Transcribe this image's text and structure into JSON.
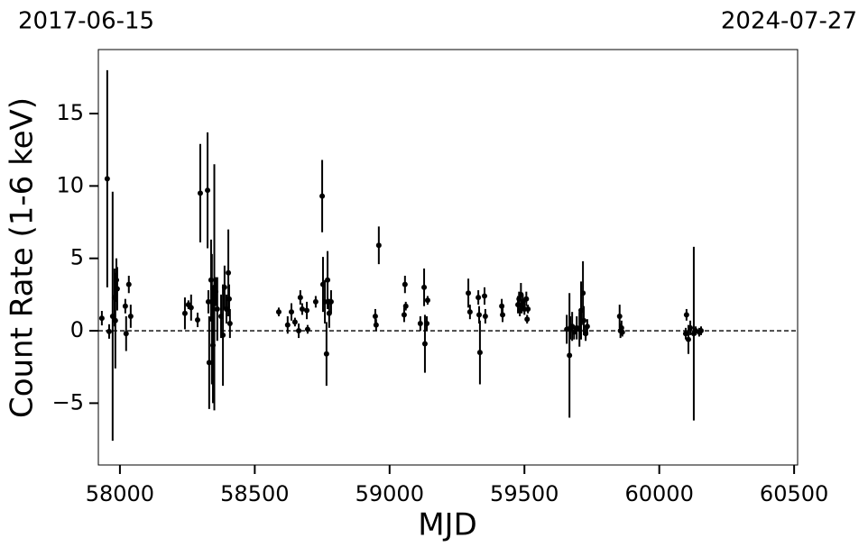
{
  "chart_data": {
    "type": "errorbar",
    "annotations": [
      "2017-06-15",
      "2024-07-27"
    ],
    "xlabel": "MJD",
    "ylabel": "Count Rate (1-6 keV)",
    "xlim": [
      57920,
      60513
    ],
    "ylim": [
      -9.27,
      19.42
    ],
    "xticks": [
      58000,
      58500,
      59000,
      59500,
      60000,
      60500
    ],
    "yticks": [
      {
        "value": -5,
        "label": "−5"
      },
      0,
      5,
      10,
      15
    ],
    "reference_line": 0,
    "color": "#000000",
    "x": [
      57933,
      57953,
      57960,
      57973,
      57980,
      57983,
      57987,
      57990,
      58020,
      58023,
      58033,
      58040,
      58241,
      58254,
      58264,
      58288,
      58298,
      58325,
      58328,
      58331,
      58338,
      58341,
      58345,
      58350,
      58355,
      58361,
      58375,
      58382,
      58388,
      58395,
      58402,
      58405,
      58408,
      58589,
      58622,
      58636,
      58649,
      58663,
      58669,
      58676,
      58693,
      58696,
      58726,
      58750,
      58753,
      58760,
      58766,
      58770,
      58776,
      58783,
      58947,
      58950,
      58960,
      59054,
      59057,
      59060,
      59114,
      59128,
      59131,
      59138,
      59141,
      59292,
      59298,
      59329,
      59332,
      59335,
      59352,
      59355,
      59416,
      59419,
      59476,
      59480,
      59483,
      59487,
      59490,
      59494,
      59500,
      59507,
      59510,
      59513,
      59657,
      59667,
      59670,
      59677,
      59684,
      59694,
      59704,
      59710,
      59717,
      59720,
      59727,
      59733,
      59853,
      59856,
      59860,
      59863,
      60098,
      60101,
      60108,
      60115,
      60128,
      60135,
      60148,
      60155
    ],
    "values": [
      0.87,
      10.5,
      -0.05,
      1.0,
      2.3,
      0.7,
      3.5,
      2.9,
      1.7,
      -0.2,
      3.2,
      1.0,
      1.2,
      1.8,
      1.6,
      0.75,
      9.5,
      9.7,
      2.0,
      -2.2,
      3.5,
      0.8,
      -1.0,
      3.0,
      2.7,
      1.5,
      1.0,
      -0.3,
      3.0,
      1.5,
      4.0,
      2.2,
      0.5,
      1.3,
      0.4,
      1.3,
      0.6,
      0.0,
      2.3,
      1.5,
      1.4,
      0.1,
      2.0,
      9.3,
      3.2,
      2.0,
      -1.6,
      3.5,
      1.2,
      2.0,
      1.0,
      0.4,
      5.9,
      1.1,
      3.2,
      1.7,
      0.5,
      3.0,
      -0.9,
      0.5,
      2.1,
      2.6,
      1.3,
      2.3,
      1.1,
      -1.5,
      2.4,
      1.0,
      1.7,
      1.1,
      1.8,
      2.2,
      1.4,
      2.5,
      1.6,
      2.0,
      1.5,
      2.2,
      0.8,
      1.5,
      0.1,
      -1.7,
      0.2,
      0.3,
      -0.1,
      0.2,
      0.1,
      1.4,
      2.6,
      0.7,
      -0.2,
      0.3,
      1.0,
      0.0,
      0.2,
      -0.1,
      -0.2,
      1.1,
      -0.6,
      0.2,
      -0.2,
      0.0,
      -0.1,
      0.0
    ],
    "errors": [
      0.5,
      7.5,
      0.5,
      8.6,
      2,
      3.3,
      1.5,
      1.5,
      0.5,
      1.2,
      0.6,
      0.8,
      1.1,
      0.3,
      0.9,
      0.5,
      3.4,
      4.0,
      0.8,
      3.2,
      2.8,
      4.5,
      4.0,
      8.5,
      1.0,
      2.2,
      1.5,
      3.5,
      1.5,
      1.0,
      3.0,
      1.0,
      1.0,
      0.3,
      0.6,
      0.6,
      0.3,
      0.5,
      0.5,
      0.4,
      0.6,
      0.3,
      0.4,
      2.5,
      1.9,
      1.5,
      2.2,
      2.0,
      1.0,
      0.8,
      0.5,
      0.4,
      1.3,
      0.5,
      0.6,
      0.3,
      0.5,
      1.3,
      2.0,
      0.5,
      0.3,
      1.0,
      0.5,
      0.5,
      0.6,
      2.2,
      0.6,
      0.5,
      0.5,
      0.5,
      0.6,
      0.5,
      0.4,
      0.8,
      0.4,
      0.5,
      0.4,
      0.5,
      0.3,
      0.3,
      1.0,
      4.3,
      0.8,
      1.0,
      0.5,
      0.8,
      1.2,
      2.0,
      2.2,
      1.0,
      0.5,
      0.5,
      0.8,
      0.5,
      0.5,
      0.3,
      0.4,
      0.4,
      1.0,
      0.5,
      6.0,
      0.3,
      0.3,
      0.3
    ]
  }
}
